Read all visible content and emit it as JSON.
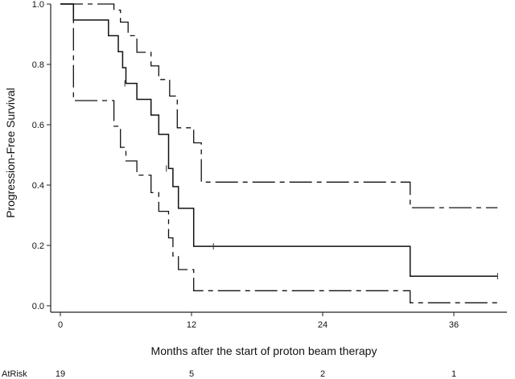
{
  "chart_data": {
    "type": "line",
    "title": "",
    "xlabel": "Months after the start of proton beam therapy",
    "ylabel": "Progression-Free Survival",
    "xlim": [
      -1,
      42
    ],
    "ylim": [
      -0.02,
      1.0
    ],
    "x_ticks": [
      0,
      12,
      24,
      36
    ],
    "x_tick_labels": [
      "0",
      "12",
      "24",
      "36"
    ],
    "y_ticks": [
      0.0,
      0.2,
      0.4,
      0.6,
      0.8,
      1.0
    ],
    "y_tick_labels": [
      "0.0",
      "0.2",
      "0.4",
      "0.6",
      "0.8",
      "1.0"
    ],
    "grid": false,
    "series": [
      {
        "style": "solid",
        "points": [
          [
            0,
            1.0
          ],
          [
            1.2,
            1.0
          ],
          [
            1.2,
            0.947
          ],
          [
            4.4,
            0.947
          ],
          [
            4.4,
            0.895
          ],
          [
            5.3,
            0.895
          ],
          [
            5.3,
            0.842
          ],
          [
            5.7,
            0.842
          ],
          [
            5.7,
            0.789
          ],
          [
            6.0,
            0.789
          ],
          [
            6.0,
            0.737
          ],
          [
            7.0,
            0.737
          ],
          [
            7.0,
            0.684
          ],
          [
            8.3,
            0.684
          ],
          [
            8.3,
            0.632
          ],
          [
            9.0,
            0.632
          ],
          [
            9.0,
            0.568
          ],
          [
            9.9,
            0.568
          ],
          [
            9.9,
            0.455
          ],
          [
            10.3,
            0.455
          ],
          [
            10.3,
            0.395
          ],
          [
            10.8,
            0.395
          ],
          [
            10.8,
            0.323
          ],
          [
            12.2,
            0.323
          ],
          [
            12.2,
            0.197
          ],
          [
            32.0,
            0.197
          ],
          [
            32.0,
            0.098
          ],
          [
            40.0,
            0.098
          ]
        ],
        "censored": [
          [
            5.9,
            0.737
          ],
          [
            9.7,
            0.455
          ],
          [
            14.0,
            0.197
          ],
          [
            40.0,
            0.098
          ]
        ]
      },
      {
        "style": "dashed",
        "points": [
          [
            0,
            1.0
          ],
          [
            4.9,
            1.0
          ],
          [
            4.9,
            0.98
          ],
          [
            5.5,
            0.98
          ],
          [
            5.5,
            0.94
          ],
          [
            6.2,
            0.94
          ],
          [
            6.2,
            0.895
          ],
          [
            7.0,
            0.895
          ],
          [
            7.0,
            0.84
          ],
          [
            8.3,
            0.84
          ],
          [
            8.3,
            0.795
          ],
          [
            9.0,
            0.795
          ],
          [
            9.0,
            0.75
          ],
          [
            10.0,
            0.75
          ],
          [
            10.0,
            0.695
          ],
          [
            10.7,
            0.695
          ],
          [
            10.7,
            0.59
          ],
          [
            12.2,
            0.59
          ],
          [
            12.2,
            0.54
          ],
          [
            12.9,
            0.54
          ],
          [
            12.9,
            0.41
          ],
          [
            32.0,
            0.41
          ],
          [
            32.0,
            0.325
          ],
          [
            40.0,
            0.325
          ]
        ]
      },
      {
        "style": "dashed",
        "points": [
          [
            0,
            1.0
          ],
          [
            1.2,
            1.0
          ],
          [
            1.2,
            0.68
          ],
          [
            4.9,
            0.68
          ],
          [
            4.9,
            0.595
          ],
          [
            5.5,
            0.595
          ],
          [
            5.5,
            0.525
          ],
          [
            6.0,
            0.525
          ],
          [
            6.0,
            0.48
          ],
          [
            7.0,
            0.48
          ],
          [
            7.0,
            0.433
          ],
          [
            8.3,
            0.433
          ],
          [
            8.3,
            0.375
          ],
          [
            9.0,
            0.375
          ],
          [
            9.0,
            0.313
          ],
          [
            9.9,
            0.313
          ],
          [
            9.9,
            0.225
          ],
          [
            10.3,
            0.225
          ],
          [
            10.3,
            0.165
          ],
          [
            10.8,
            0.165
          ],
          [
            10.8,
            0.12
          ],
          [
            12.2,
            0.12
          ],
          [
            12.2,
            0.05
          ],
          [
            32.0,
            0.05
          ],
          [
            32.0,
            0.01
          ],
          [
            40.0,
            0.01
          ]
        ]
      }
    ],
    "at_risk": {
      "label": "AtRisk",
      "times": [
        0,
        12,
        24,
        36
      ],
      "counts": [
        "19",
        "5",
        "2",
        "1"
      ]
    }
  }
}
